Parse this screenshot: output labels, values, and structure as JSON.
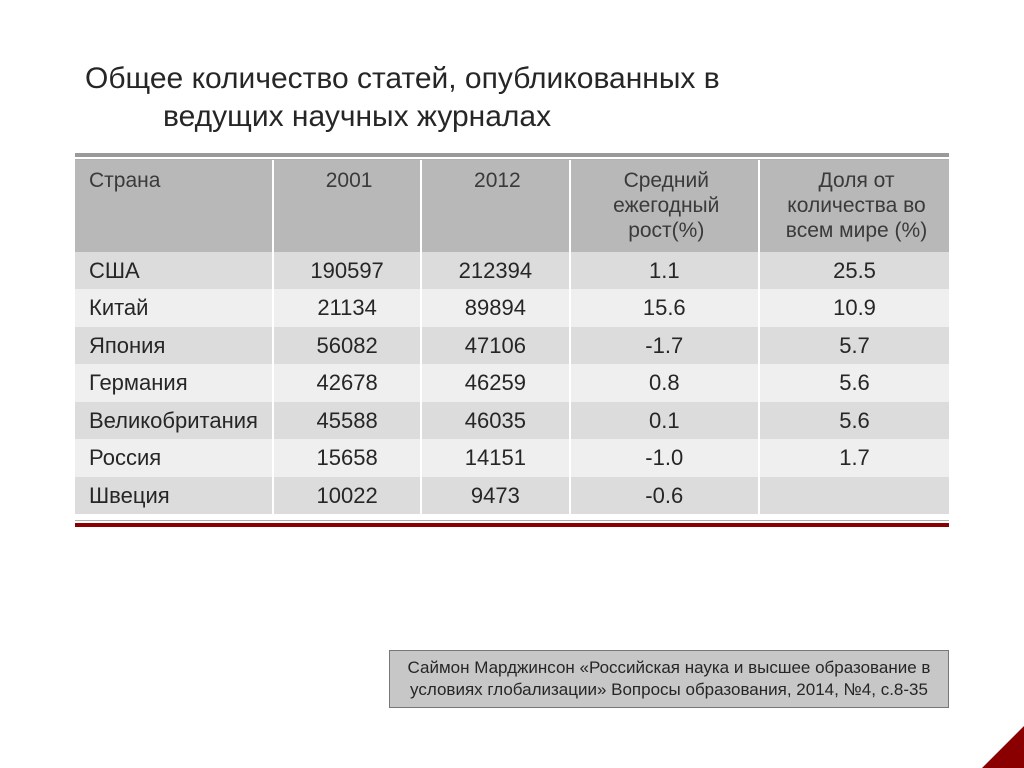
{
  "title_line1": "Общее количество статей, опубликованных в",
  "title_line2": "ведущих научных журналах",
  "table": {
    "columns": [
      {
        "label": "Страна"
      },
      {
        "label": "2001"
      },
      {
        "label": "2012"
      },
      {
        "label": "Средний ежегодный рост(%)"
      },
      {
        "label": "Доля от количества во всем мире (%)"
      }
    ],
    "rows": [
      {
        "country": "США",
        "y2001": "190597",
        "y2012": "212394",
        "growth": "1.1",
        "share": "25.5"
      },
      {
        "country": "Китай",
        "y2001": "21134",
        "y2012": "89894",
        "growth": "15.6",
        "share": "10.9"
      },
      {
        "country": "Япония",
        "y2001": "56082",
        "y2012": "47106",
        "growth": "-1.7",
        "share": "5.7"
      },
      {
        "country": "Германия",
        "y2001": "42678",
        "y2012": "46259",
        "growth": "0.8",
        "share": "5.6"
      },
      {
        "country": "Великобритания",
        "y2001": "45588",
        "y2012": "46035",
        "growth": "0.1",
        "share": "5.6"
      },
      {
        "country": "Россия",
        "y2001": "15658",
        "y2012": "14151",
        "growth": "-1.0",
        "share": "1.7"
      },
      {
        "country": "Швеция",
        "y2001": "10022",
        "y2012": "9473",
        "growth": "-0.6",
        "share": ""
      }
    ]
  },
  "citation": "Саймон Марджинсон «Российская наука и высшее образование в условиях глобализации»  Вопросы образования, 2014, №4, с.8-35",
  "styling": {
    "slide_bg": "#ffffff",
    "title_color": "#262626",
    "title_fontsize": 30,
    "header_row_bg": "#b8b8b8",
    "row_odd_bg": "#dcdcdc",
    "row_even_bg": "#efefef",
    "cell_fontsize": 22,
    "rule_top_color": "#9a9a9a",
    "rule_accent_color": "#8a0000",
    "citation_bg": "#c7c7c7",
    "citation_border": "#777777",
    "citation_fontsize": 17,
    "col_widths_pct": [
      18,
      18,
      18,
      23,
      23
    ],
    "text_align": [
      "left",
      "center",
      "center",
      "center",
      "center"
    ]
  }
}
